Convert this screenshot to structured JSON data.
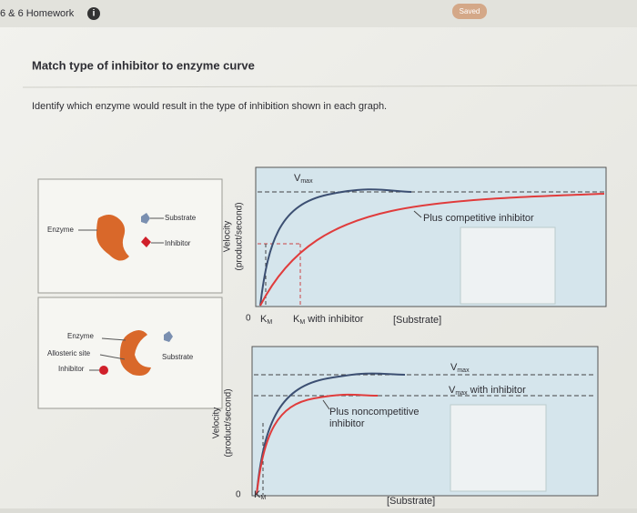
{
  "header": {
    "title": "6 & 6 Homework",
    "status": "Saved"
  },
  "question": {
    "title": "Match type of inhibitor to enzyme curve",
    "instruction": "Identify which enzyme would result in the type of inhibition shown in each graph."
  },
  "cards": [
    {
      "enzyme": "Enzyme",
      "substrate": "Substrate",
      "inhibitor": "Inhibitor"
    },
    {
      "enzyme": "Enzyme",
      "allosteric_site": "Allosteric site",
      "substrate": "Substrate",
      "inhibitor": "Inhibitor"
    }
  ],
  "graphs": [
    {
      "y_label": "Velocity",
      "y_unit": "(product/second)",
      "vmax": {
        "main": "V",
        "sub": "max"
      },
      "curve_label": "Plus competitive inhibitor",
      "origin": "0",
      "km": {
        "main": "K",
        "sub": "M"
      },
      "km_inhibitor": {
        "main": "K",
        "sub": "M",
        "rest": " with inhibitor"
      },
      "x_label": "[Substrate]"
    },
    {
      "y_label": "Velocity",
      "y_unit": "(product/second)",
      "vmax": {
        "main": "V",
        "sub": "max"
      },
      "vmax_inhibitor": {
        "main": "V",
        "sub": "max",
        "rest": " with inhibitor"
      },
      "curve_label": [
        "Plus noncompetitive",
        "inhibitor"
      ],
      "origin": "0",
      "km": {
        "main": "K",
        "sub": "M"
      },
      "x_label": "[Substrate]"
    }
  ]
}
